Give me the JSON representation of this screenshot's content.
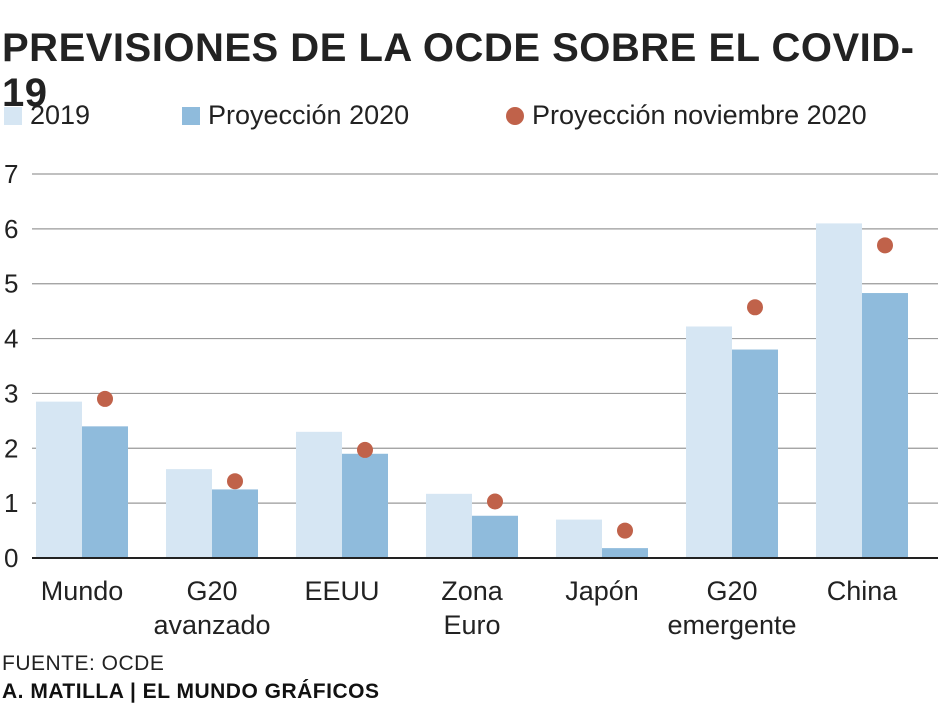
{
  "chart_data": {
    "type": "bar",
    "title": "PREVISIONES DE LA OCDE SOBRE EL COVID-19",
    "categories": [
      [
        "Mundo"
      ],
      [
        "G20",
        "avanzado"
      ],
      [
        "EEUU"
      ],
      [
        "Zona",
        "Euro"
      ],
      [
        "Japón"
      ],
      [
        "G20",
        "emergente"
      ],
      [
        "China"
      ]
    ],
    "series": [
      {
        "name": "2019",
        "kind": "bar",
        "color": "#d6e6f3",
        "values": [
          2.85,
          1.62,
          2.3,
          1.17,
          0.7,
          4.22,
          6.1
        ]
      },
      {
        "name": "Proyección 2020",
        "kind": "bar",
        "color": "#8fbbdc",
        "values": [
          2.4,
          1.25,
          1.9,
          0.77,
          0.18,
          3.8,
          4.83
        ]
      },
      {
        "name": "Proyección noviembre 2020",
        "kind": "point",
        "color": "#c0624a",
        "values": [
          2.9,
          1.4,
          1.97,
          1.03,
          0.5,
          4.57,
          5.7
        ]
      }
    ],
    "ylim": [
      0,
      7
    ],
    "yticks": [
      0,
      1,
      2,
      3,
      4,
      5,
      6,
      7
    ],
    "grid": true,
    "legend_position": "top"
  },
  "footer": {
    "source": "FUENTE: OCDE",
    "credit": "A. MATILLA | EL MUNDO GRÁFICOS"
  }
}
